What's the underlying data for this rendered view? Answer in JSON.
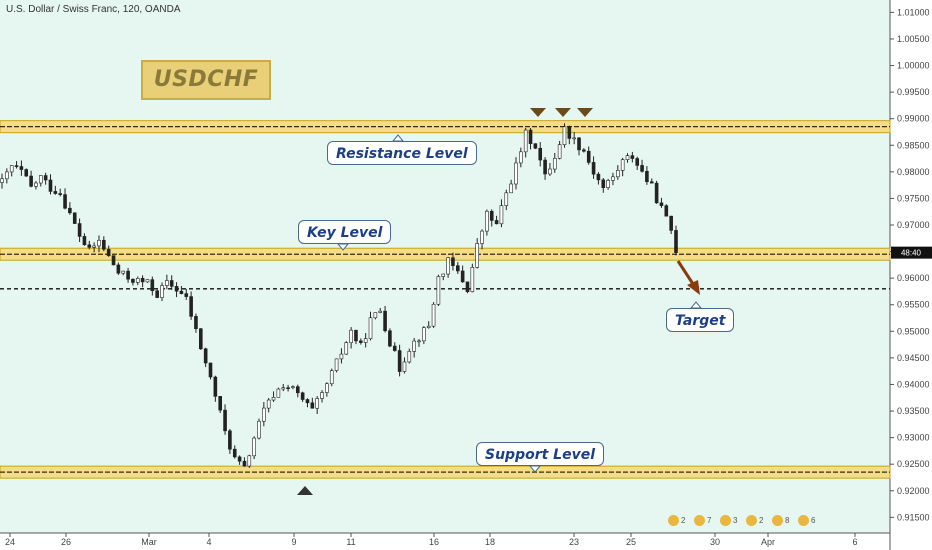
{
  "header": {
    "symbol_text": "U.S. Dollar / Swiss Franc, 120, OANDA"
  },
  "badge": {
    "title": "USDCHF"
  },
  "annotations": {
    "resistance": "Resistance Level",
    "key": "Key Level",
    "support": "Support Level",
    "target": "Target"
  },
  "price_tag": "48:40",
  "colors": {
    "background": "#e6f6f0",
    "band_fill": "#f4dd88",
    "band_line": "#c9a21d",
    "candle_up": "#ffffff",
    "candle_down": "#222222",
    "wick": "#222222",
    "arrow": "#8b3a0e",
    "marker": "#6b4a1a",
    "axis_text": "#444444"
  },
  "toolbar": {
    "counts": [
      "2",
      "7",
      "3",
      "2",
      "8",
      "6"
    ]
  },
  "chart_data": {
    "type": "candlestick",
    "title": "U.S. Dollar / Swiss Franc, 120, OANDA",
    "y_ticks": [
      "1.01000",
      "1.00500",
      "1.00000",
      "0.99500",
      "0.99000",
      "0.98500",
      "0.98000",
      "0.97500",
      "0.97000",
      "0.96500",
      "0.96000",
      "0.95500",
      "0.95000",
      "0.94500",
      "0.94000",
      "0.93500",
      "0.93000",
      "0.92500",
      "0.92000",
      "0.91500"
    ],
    "y_range": [
      0.9145,
      1.0112
    ],
    "x_ticks": [
      "24",
      "26",
      "Mar",
      "4",
      "9",
      "11",
      "16",
      "18",
      "23",
      "25",
      "30",
      "Apr",
      "6"
    ],
    "levels": [
      {
        "name": "Resistance Level",
        "value": 0.9885
      },
      {
        "name": "Key Level",
        "value": 0.9645
      },
      {
        "name": "Support Level",
        "value": 0.9235
      }
    ],
    "target_line": 0.958,
    "last_price": 0.9648,
    "path": [
      [
        0,
        0.978
      ],
      [
        2,
        0.981
      ],
      [
        4,
        0.98
      ],
      [
        6,
        0.977
      ],
      [
        8,
        0.979
      ],
      [
        10,
        0.977
      ],
      [
        12,
        0.976
      ],
      [
        14,
        0.972
      ],
      [
        16,
        0.968
      ],
      [
        18,
        0.965
      ],
      [
        20,
        0.967
      ],
      [
        22,
        0.964
      ],
      [
        24,
        0.961
      ],
      [
        26,
        0.96
      ],
      [
        28,
        0.9595
      ],
      [
        30,
        0.959
      ],
      [
        32,
        0.957
      ],
      [
        34,
        0.959
      ],
      [
        36,
        0.958
      ],
      [
        38,
        0.956
      ],
      [
        40,
        0.95
      ],
      [
        42,
        0.944
      ],
      [
        44,
        0.938
      ],
      [
        46,
        0.931
      ],
      [
        48,
        0.926
      ],
      [
        50,
        0.924
      ],
      [
        52,
        0.93
      ],
      [
        54,
        0.935
      ],
      [
        56,
        0.938
      ],
      [
        58,
        0.94
      ],
      [
        60,
        0.939
      ],
      [
        62,
        0.937
      ],
      [
        64,
        0.935
      ],
      [
        66,
        0.938
      ],
      [
        68,
        0.942
      ],
      [
        70,
        0.946
      ],
      [
        72,
        0.95
      ],
      [
        74,
        0.947
      ],
      [
        76,
        0.952
      ],
      [
        78,
        0.954
      ],
      [
        80,
        0.948
      ],
      [
        82,
        0.943
      ],
      [
        84,
        0.947
      ],
      [
        86,
        0.949
      ],
      [
        88,
        0.951
      ],
      [
        90,
        0.96
      ],
      [
        92,
        0.963
      ],
      [
        94,
        0.961
      ],
      [
        96,
        0.958
      ],
      [
        98,
        0.966
      ],
      [
        100,
        0.972
      ],
      [
        102,
        0.97
      ],
      [
        104,
        0.976
      ],
      [
        106,
        0.981
      ],
      [
        108,
        0.987
      ],
      [
        110,
        0.985
      ],
      [
        112,
        0.979
      ],
      [
        114,
        0.983
      ],
      [
        116,
        0.988
      ],
      [
        118,
        0.986
      ],
      [
        120,
        0.984
      ],
      [
        122,
        0.98
      ],
      [
        124,
        0.977
      ],
      [
        126,
        0.979
      ],
      [
        128,
        0.982
      ],
      [
        130,
        0.983
      ],
      [
        132,
        0.98
      ],
      [
        134,
        0.977
      ],
      [
        136,
        0.973
      ],
      [
        138,
        0.969
      ],
      [
        139,
        0.965
      ]
    ]
  }
}
